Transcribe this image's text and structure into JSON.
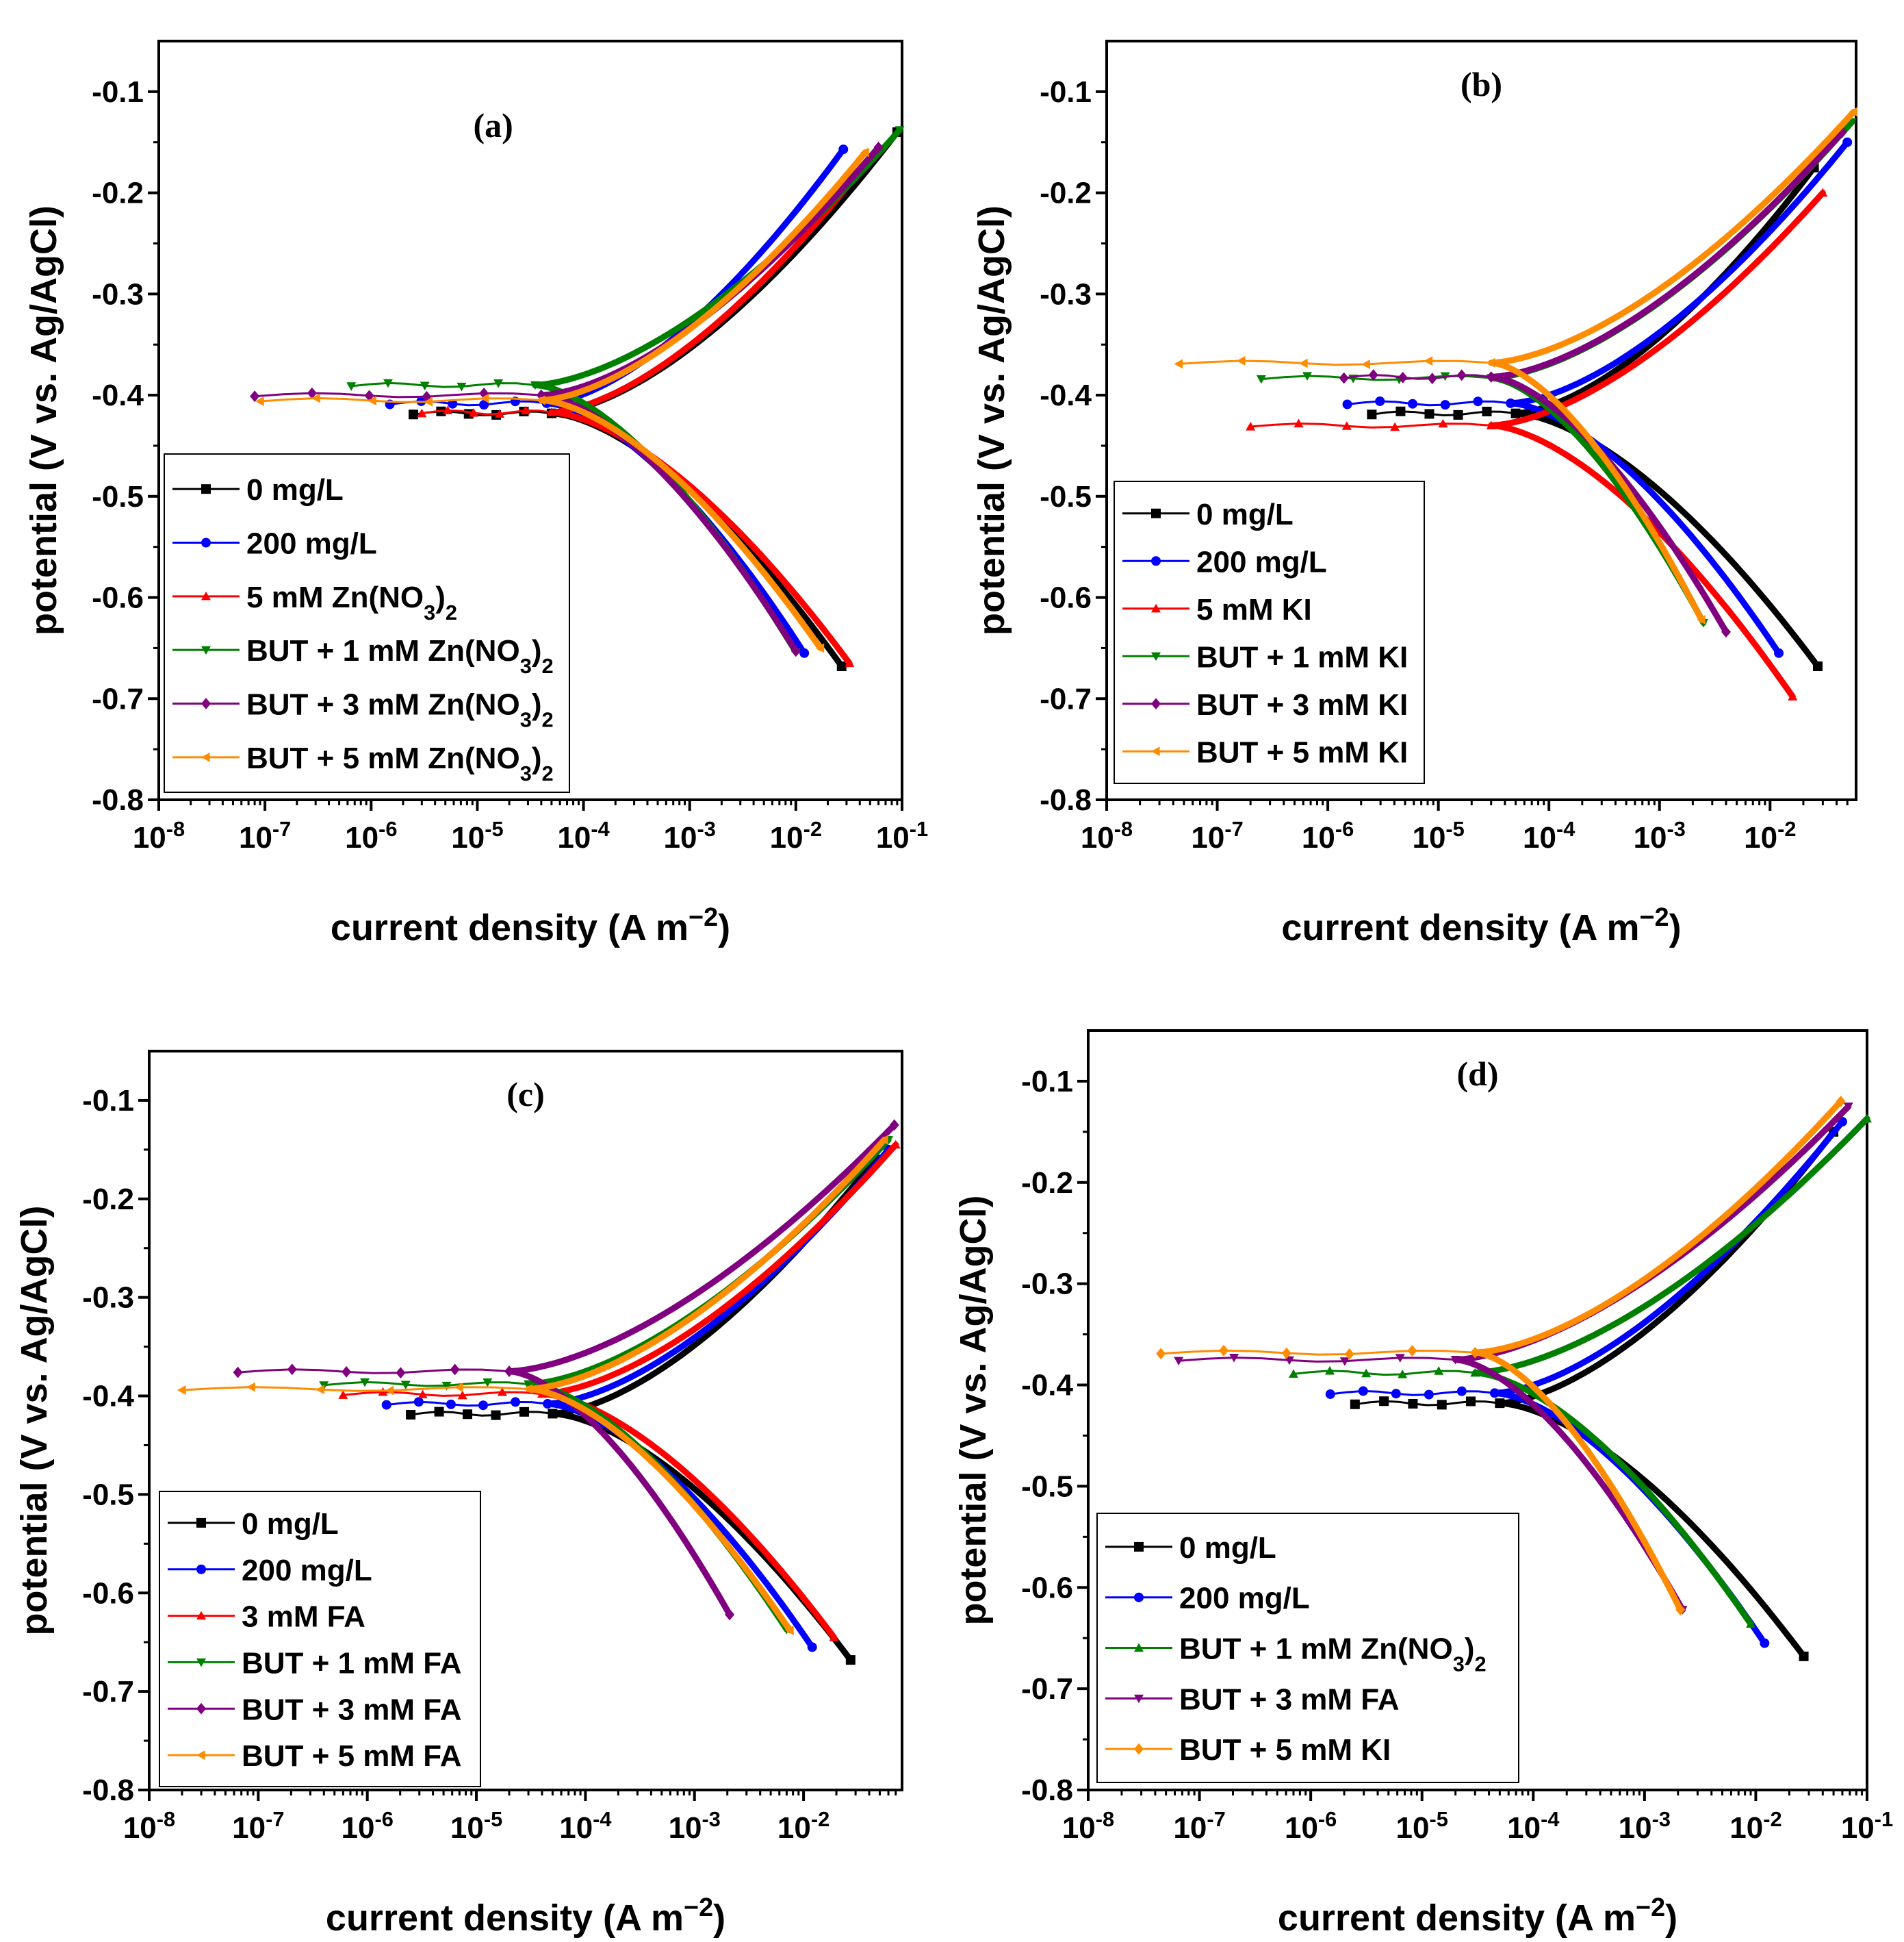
{
  "figure": {
    "background": "#ffffff"
  },
  "chart_data": [
    {
      "type": "line",
      "panel_label": "(a)",
      "xlabel": "current density (A m−2)",
      "ylabel": "potential (V vs. Ag/AgCl)",
      "xscale": "log",
      "xlim": [
        1e-08,
        0.1
      ],
      "ylim": [
        -0.8,
        -0.05
      ],
      "x_tick_labels": [
        "10-8",
        "10-7",
        "10-6",
        "10-5",
        "10-4",
        "10-3",
        "10-2",
        "10-1"
      ],
      "y_tick_labels": [
        "-0.1",
        "-0.2",
        "-0.3",
        "-0.4",
        "-0.5",
        "-0.6",
        "-0.7",
        "-0.8"
      ],
      "legend_position": "lower-left",
      "series": [
        {
          "name": "0 mg/L",
          "color": "#000000",
          "marker": "square",
          "ecorr": -0.418,
          "icorr": 5e-05,
          "start_x": 2.5e-06,
          "cath_end": [
            0.027,
            -0.668
          ],
          "anod_end": [
            0.09,
            -0.14
          ],
          "ba": 0.12,
          "bc": 0.15
        },
        {
          "name": "200 mg/L",
          "color": "#0000ff",
          "marker": "circle",
          "ecorr": -0.408,
          "icorr": 4.5e-05,
          "start_x": 1.5e-06,
          "cath_end": [
            0.012,
            -0.655
          ],
          "anod_end": [
            0.028,
            -0.157
          ],
          "ba": 0.11,
          "bc": 0.14
        },
        {
          "name": "5 mM Zn(NO3)2",
          "color": "#ff0000",
          "marker": "triangle-up",
          "ecorr": -0.417,
          "icorr": 5e-05,
          "start_x": 3e-06,
          "cath_end": [
            0.032,
            -0.665
          ],
          "anod_end": [
            0.055,
            -0.16
          ],
          "ba": 0.12,
          "bc": 0.15
        },
        {
          "name": "BUT + 1 mM Zn(NO3)2",
          "color": "#008000",
          "marker": "triangle-down",
          "ecorr": -0.39,
          "icorr": 3.5e-05,
          "start_x": 6.5e-07,
          "cath_end": [
            0.01,
            -0.654
          ],
          "anod_end": [
            0.095,
            -0.138
          ],
          "ba": 0.095,
          "bc": 0.13
        },
        {
          "name": "BUT + 3 mM Zn(NO3)2",
          "color": "#800080",
          "marker": "diamond",
          "ecorr": -0.4,
          "icorr": 4e-05,
          "start_x": 8e-08,
          "cath_end": [
            0.01,
            -0.653
          ],
          "anod_end": [
            0.06,
            -0.155
          ],
          "ba": 0.1,
          "bc": 0.13
        },
        {
          "name": "BUT + 5 mM Zn(NO3)2",
          "color": "#ff8c00",
          "marker": "triangle-left",
          "ecorr": -0.405,
          "icorr": 4e-05,
          "start_x": 9e-08,
          "cath_end": [
            0.017,
            -0.65
          ],
          "anod_end": [
            0.045,
            -0.16
          ],
          "ba": 0.105,
          "bc": 0.14
        }
      ]
    },
    {
      "type": "line",
      "panel_label": "(b)",
      "xlabel": "current density (A m−2)",
      "ylabel": "potential (V vs. Ag/AgCl)",
      "xscale": "log",
      "xlim": [
        1e-08,
        0.06
      ],
      "ylim": [
        -0.8,
        -0.05
      ],
      "x_tick_labels": [
        "10-8",
        "10-7",
        "10-6",
        "10-5",
        "10-4",
        "10-3",
        "10-2"
      ],
      "y_tick_labels": [
        "-0.1",
        "-0.2",
        "-0.3",
        "-0.4",
        "-0.5",
        "-0.6",
        "-0.7",
        "-0.8"
      ],
      "legend_position": "lower-left",
      "series": [
        {
          "name": "0 mg/L",
          "color": "#000000",
          "marker": "square",
          "ecorr": -0.418,
          "icorr": 5e-05,
          "start_x": 2.5e-06,
          "cath_end": [
            0.027,
            -0.668
          ],
          "anod_end": [
            0.025,
            -0.175
          ],
          "ba": 0.12,
          "bc": 0.15
        },
        {
          "name": "200 mg/L",
          "color": "#0000ff",
          "marker": "circle",
          "ecorr": -0.408,
          "icorr": 4.5e-05,
          "start_x": 1.5e-06,
          "cath_end": [
            0.012,
            -0.655
          ],
          "anod_end": [
            0.05,
            -0.15
          ],
          "ba": 0.11,
          "bc": 0.14
        },
        {
          "name": "5 mM KI",
          "color": "#ff0000",
          "marker": "triangle-up",
          "ecorr": -0.43,
          "icorr": 3e-05,
          "start_x": 2e-07,
          "cath_end": [
            0.016,
            -0.698
          ],
          "anod_end": [
            0.03,
            -0.2
          ],
          "ba": 0.13,
          "bc": 0.16
        },
        {
          "name": "BUT + 1 mM KI",
          "color": "#008000",
          "marker": "triangle-down",
          "ecorr": -0.383,
          "icorr": 3e-05,
          "start_x": 2.5e-07,
          "cath_end": [
            0.0025,
            -0.625
          ],
          "anod_end": [
            0.055,
            -0.13
          ],
          "ba": 0.1,
          "bc": 0.13
        },
        {
          "name": "BUT + 3 mM KI",
          "color": "#800080",
          "marker": "diamond",
          "ecorr": -0.382,
          "icorr": 3e-05,
          "start_x": 1.4e-06,
          "cath_end": [
            0.004,
            -0.634
          ],
          "anod_end": [
            0.045,
            -0.14
          ],
          "ba": 0.105,
          "bc": 0.13
        },
        {
          "name": "BUT + 5 mM KI",
          "color": "#ff8c00",
          "marker": "triangle-left",
          "ecorr": -0.368,
          "icorr": 3e-05,
          "start_x": 4.5e-08,
          "cath_end": [
            0.0024,
            -0.622
          ],
          "anod_end": [
            0.057,
            -0.12
          ],
          "ba": 0.1,
          "bc": 0.13
        }
      ]
    },
    {
      "type": "line",
      "panel_label": "(c)",
      "xlabel": "current density (A m−2)",
      "ylabel": "potential (V vs. Ag/AgCl)",
      "xscale": "log",
      "xlim": [
        1e-08,
        0.08
      ],
      "ylim": [
        -0.8,
        -0.05
      ],
      "x_tick_labels": [
        "10-8",
        "10-7",
        "10-6",
        "10-5",
        "10-4",
        "10-3",
        "10-2"
      ],
      "y_tick_labels": [
        "-0.1",
        "-0.2",
        "-0.3",
        "-0.4",
        "-0.5",
        "-0.6",
        "-0.7",
        "-0.8"
      ],
      "legend_position": "lower-left",
      "series": [
        {
          "name": "0 mg/L",
          "color": "#000000",
          "marker": "square",
          "ecorr": -0.418,
          "icorr": 5e-05,
          "start_x": 2.5e-06,
          "cath_end": [
            0.027,
            -0.668
          ],
          "anod_end": [
            0.045,
            -0.16
          ],
          "ba": 0.12,
          "bc": 0.15
        },
        {
          "name": "200 mg/L",
          "color": "#0000ff",
          "marker": "circle",
          "ecorr": -0.408,
          "icorr": 4.5e-05,
          "start_x": 1.5e-06,
          "cath_end": [
            0.012,
            -0.655
          ],
          "anod_end": [
            0.06,
            -0.15
          ],
          "ba": 0.11,
          "bc": 0.14
        },
        {
          "name": "3 mM FA",
          "color": "#ff0000",
          "marker": "triangle-up",
          "ecorr": -0.398,
          "icorr": 4e-05,
          "start_x": 6e-07,
          "cath_end": [
            0.019,
            -0.645
          ],
          "anod_end": [
            0.07,
            -0.145
          ],
          "ba": 0.11,
          "bc": 0.15
        },
        {
          "name": "BUT + 1 mM FA",
          "color": "#008000",
          "marker": "triangle-down",
          "ecorr": -0.388,
          "icorr": 3e-05,
          "start_x": 4e-07,
          "cath_end": [
            0.007,
            -0.637
          ],
          "anod_end": [
            0.06,
            -0.14
          ],
          "ba": 0.1,
          "bc": 0.14
        },
        {
          "name": "BUT + 3 mM FA",
          "color": "#800080",
          "marker": "diamond",
          "ecorr": -0.375,
          "icorr": 2e-05,
          "start_x": 6.5e-08,
          "cath_end": [
            0.0021,
            -0.622
          ],
          "anod_end": [
            0.068,
            -0.125
          ],
          "ba": 0.09,
          "bc": 0.12
        },
        {
          "name": "BUT + 5 mM FA",
          "color": "#ff8c00",
          "marker": "triangle-left",
          "ecorr": -0.393,
          "icorr": 3e-05,
          "start_x": 2e-08,
          "cath_end": [
            0.0075,
            -0.638
          ],
          "anod_end": [
            0.055,
            -0.14
          ],
          "ba": 0.1,
          "bc": 0.14
        }
      ]
    },
    {
      "type": "line",
      "panel_label": "(d)",
      "xlabel": "current density (A m−2)",
      "ylabel": "potential (V vs. Ag/AgCl)",
      "xscale": "log",
      "xlim": [
        1e-08,
        0.1
      ],
      "ylim": [
        -0.8,
        -0.05
      ],
      "x_tick_labels": [
        "10-8",
        "10-7",
        "10-6",
        "10-5",
        "10-4",
        "10-3",
        "10-2",
        "10-1"
      ],
      "y_tick_labels": [
        "-0.1",
        "-0.2",
        "-0.3",
        "-0.4",
        "-0.5",
        "-0.6",
        "-0.7",
        "-0.8"
      ],
      "legend_position": "lower-left",
      "series": [
        {
          "name": "0 mg/L",
          "color": "#000000",
          "marker": "square",
          "ecorr": -0.418,
          "icorr": 5e-05,
          "start_x": 2.5e-06,
          "cath_end": [
            0.027,
            -0.668
          ],
          "anod_end": [
            0.05,
            -0.15
          ],
          "ba": 0.12,
          "bc": 0.15
        },
        {
          "name": "200 mg/L",
          "color": "#0000ff",
          "marker": "circle",
          "ecorr": -0.408,
          "icorr": 4.5e-05,
          "start_x": 1.5e-06,
          "cath_end": [
            0.012,
            -0.655
          ],
          "anod_end": [
            0.06,
            -0.14
          ],
          "ba": 0.11,
          "bc": 0.14
        },
        {
          "name": "BUT + 1 mM Zn(NO3)2",
          "color": "#008000",
          "marker": "triangle-up",
          "ecorr": -0.388,
          "icorr": 3e-05,
          "start_x": 7e-07,
          "cath_end": [
            0.009,
            -0.636
          ],
          "anod_end": [
            0.1,
            -0.137
          ],
          "ba": 0.1,
          "bc": 0.14
        },
        {
          "name": "BUT + 3 mM FA",
          "color": "#800080",
          "marker": "triangle-down",
          "ecorr": -0.375,
          "icorr": 2e-05,
          "start_x": 6.5e-08,
          "cath_end": [
            0.0022,
            -0.622
          ],
          "anod_end": [
            0.068,
            -0.125
          ],
          "ba": 0.09,
          "bc": 0.12
        },
        {
          "name": "BUT + 5 mM KI",
          "color": "#ff8c00",
          "marker": "diamond",
          "ecorr": -0.368,
          "icorr": 3e-05,
          "start_x": 4.5e-08,
          "cath_end": [
            0.0021,
            -0.622
          ],
          "anod_end": [
            0.058,
            -0.12
          ],
          "ba": 0.1,
          "bc": 0.13
        }
      ]
    }
  ]
}
